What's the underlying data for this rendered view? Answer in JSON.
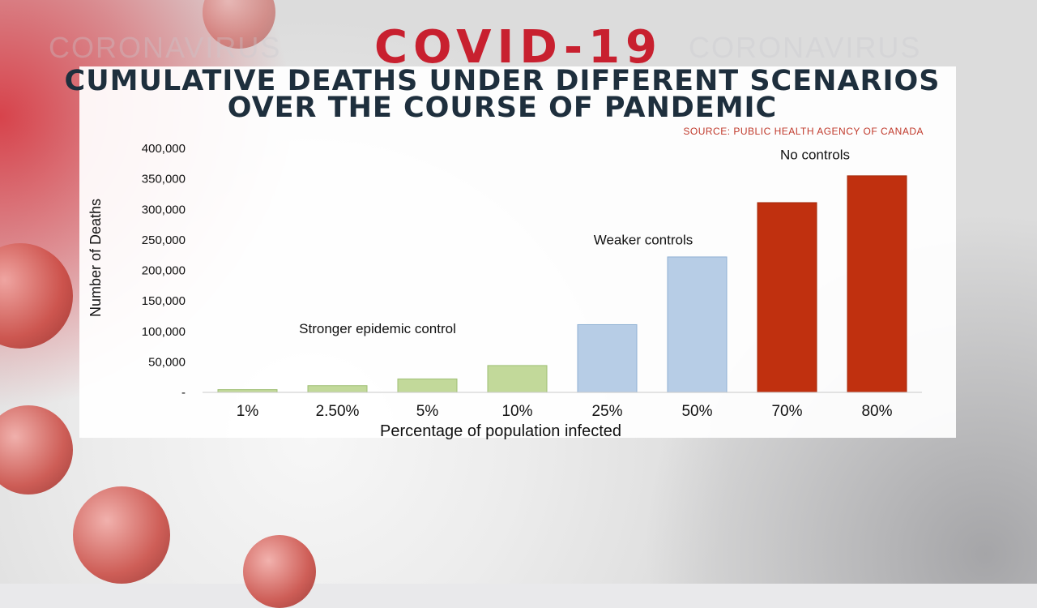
{
  "header": {
    "brand_watermark": "CORONAVIRUS",
    "title": "COVID-19",
    "subtitle_line1": "CUMULATIVE DEATHS UNDER DIFFERENT SCENARIOS",
    "subtitle_line2": "OVER THE COURSE OF PANDEMIC",
    "source": "SOURCE: PUBLIC HEALTH AGENCY OF CANADA"
  },
  "colors": {
    "title": "#c8202f",
    "green": "#c2d99a",
    "blue": "#b7cde6",
    "red": "#c0300f"
  },
  "chart_data": {
    "type": "bar",
    "xlabel": "Percentage of population infected",
    "ylabel": "Number of Deaths",
    "ylim": [
      0,
      400000
    ],
    "yticks": [
      0,
      50000,
      100000,
      150000,
      200000,
      250000,
      300000,
      350000,
      400000
    ],
    "ytick_labels": [
      "-",
      "50,000",
      "100,000",
      "150,000",
      "200,000",
      "250,000",
      "300,000",
      "350,000",
      "400,000"
    ],
    "categories": [
      "1%",
      "2.50%",
      "5%",
      "10%",
      "25%",
      "50%",
      "70%",
      "80%"
    ],
    "values": [
      4500,
      11000,
      22000,
      44000,
      111000,
      222000,
      311000,
      355000
    ],
    "bar_groups": [
      "green",
      "green",
      "green",
      "green",
      "blue",
      "blue",
      "red",
      "red"
    ],
    "annotations": [
      {
        "text": "Stronger epidemic control",
        "anchor_value": 100000
      },
      {
        "text": "Weaker controls",
        "anchor_value": 245000
      },
      {
        "text": "No controls",
        "anchor_value": 385000
      }
    ],
    "grid": false,
    "legend": "none"
  }
}
